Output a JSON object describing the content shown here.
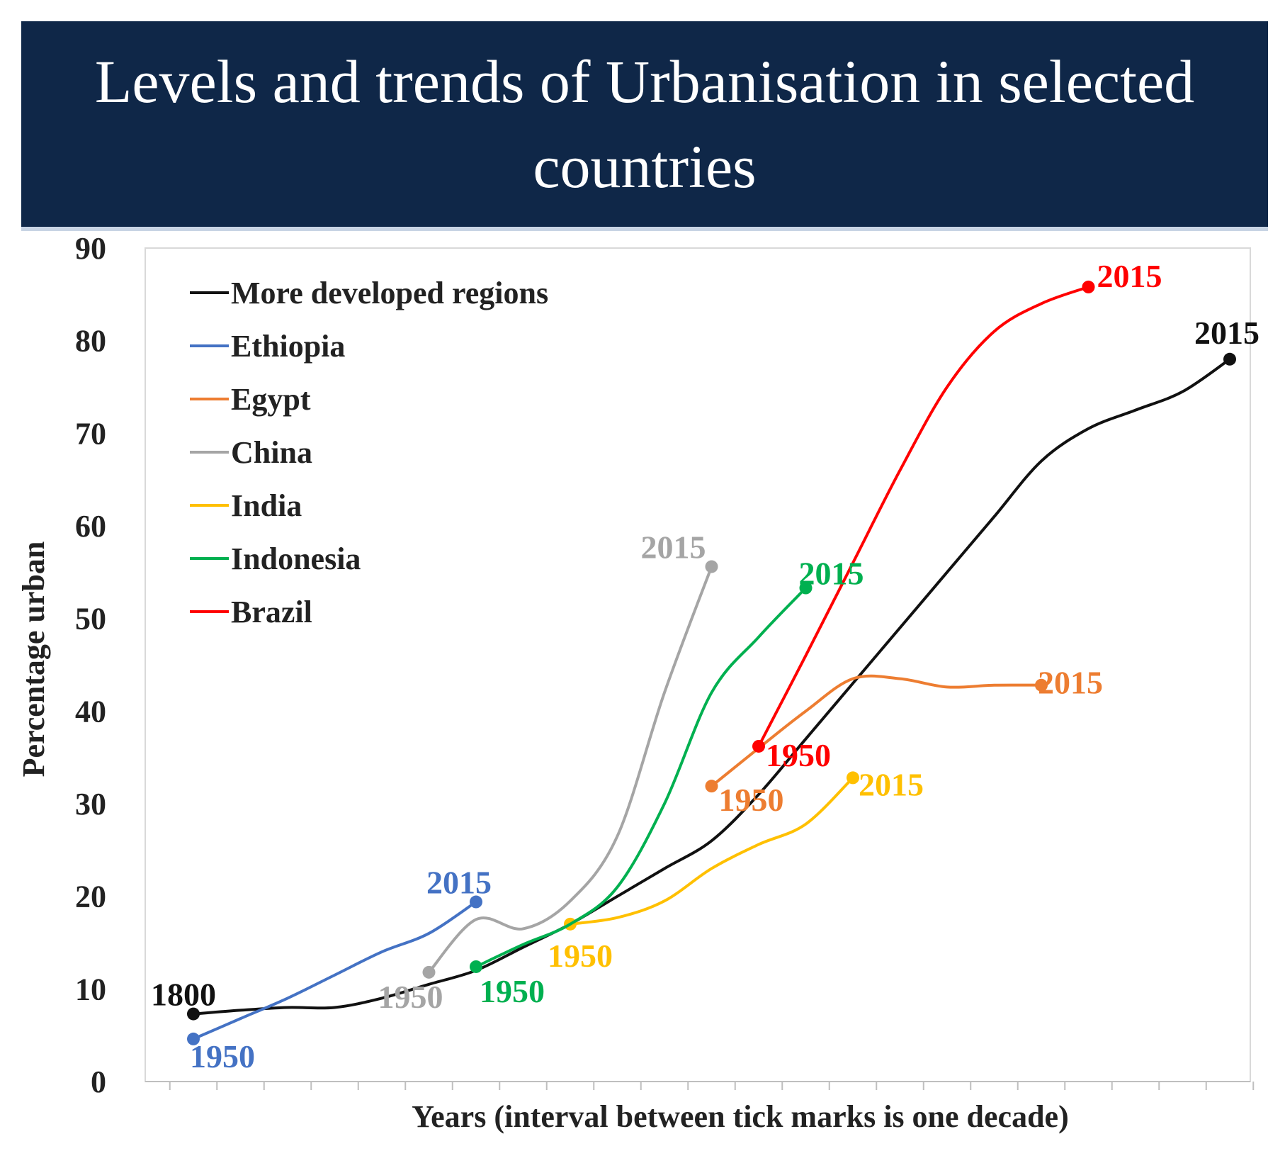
{
  "chart_data": {
    "type": "line",
    "title": "Levels and trends of Urbanisation in selected countries",
    "xlabel": "Years (interval between tick marks is one decade)",
    "ylabel": "Percentage  urban",
    "ylim": [
      0,
      90
    ],
    "yticks": [
      0,
      10,
      20,
      30,
      40,
      50,
      60,
      70,
      80,
      90
    ],
    "x_unit": "decade index (0 = 1800, one tick per decade)",
    "xlim": [
      -1,
      22
    ],
    "legend_position": "top-left",
    "series": [
      {
        "name": "More developed regions",
        "color": "#111111",
        "points": [
          [
            0,
            7.3
          ],
          [
            1,
            7.7
          ],
          [
            2,
            8.0
          ],
          [
            3,
            8.0
          ],
          [
            4,
            9.0
          ],
          [
            5,
            10.5
          ],
          [
            6,
            12.0
          ],
          [
            7,
            14.5
          ],
          [
            8,
            17.0
          ],
          [
            9,
            20.0
          ],
          [
            10,
            23.0
          ],
          [
            11,
            26.0
          ],
          [
            12,
            31.0
          ],
          [
            13,
            37.0
          ],
          [
            14,
            43.0
          ],
          [
            15,
            49.0
          ],
          [
            16,
            55.0
          ],
          [
            17,
            61.0
          ],
          [
            18,
            67.0
          ],
          [
            19,
            70.5
          ],
          [
            20,
            72.5
          ],
          [
            21,
            74.5
          ],
          [
            22,
            78.0
          ]
        ],
        "start_label": "1800",
        "end_label": "2015",
        "marker_at": [
          0,
          22
        ]
      },
      {
        "name": "Ethiopia",
        "color": "#4472c4",
        "points": [
          [
            0,
            4.6
          ],
          [
            1,
            6.8
          ],
          [
            2,
            9.0
          ],
          [
            3,
            11.5
          ],
          [
            4,
            14.0
          ],
          [
            5,
            16.0
          ],
          [
            6,
            19.4
          ]
        ],
        "start_label": "1950",
        "end_label": "2015",
        "marker_at": [
          0,
          6
        ]
      },
      {
        "name": "Egypt",
        "color": "#ed7d31",
        "points": [
          [
            11,
            31.9
          ],
          [
            12,
            36.0
          ],
          [
            13,
            40.0
          ],
          [
            14,
            43.5
          ],
          [
            15,
            43.5
          ],
          [
            16,
            42.6
          ],
          [
            17,
            42.8
          ],
          [
            18,
            42.8
          ]
        ],
        "start_label": "1950",
        "end_label": "2015",
        "marker_at": [
          11,
          18
        ]
      },
      {
        "name": "China",
        "color": "#a5a5a5",
        "points": [
          [
            5,
            11.8
          ],
          [
            6,
            17.5
          ],
          [
            7,
            16.5
          ],
          [
            8,
            19.5
          ],
          [
            9,
            26.5
          ],
          [
            10,
            42.0
          ],
          [
            11,
            55.6
          ]
        ],
        "start_label": "1950",
        "end_label": "2015",
        "marker_at": [
          5,
          11
        ]
      },
      {
        "name": "India",
        "color": "#ffc000",
        "points": [
          [
            8,
            17.0
          ],
          [
            9,
            17.7
          ],
          [
            10,
            19.5
          ],
          [
            11,
            23.0
          ],
          [
            12,
            25.6
          ],
          [
            13,
            27.8
          ],
          [
            14,
            32.8
          ]
        ],
        "start_label": "1950",
        "end_label": "2015",
        "marker_at": [
          8,
          14
        ]
      },
      {
        "name": "Indonesia",
        "color": "#00b050",
        "points": [
          [
            6,
            12.4
          ],
          [
            7,
            14.8
          ],
          [
            8,
            17.0
          ],
          [
            9,
            21.0
          ],
          [
            10,
            30.0
          ],
          [
            11,
            42.0
          ],
          [
            12,
            48.0
          ],
          [
            13,
            53.3
          ]
        ],
        "start_label": "1950",
        "end_label": "2015",
        "marker_at": [
          6,
          13
        ]
      },
      {
        "name": "Brazil",
        "color": "#ff0000",
        "points": [
          [
            12,
            36.2
          ],
          [
            13,
            46.0
          ],
          [
            14,
            56.0
          ],
          [
            15,
            66.0
          ],
          [
            16,
            75.0
          ],
          [
            17,
            81.0
          ],
          [
            18,
            84.0
          ],
          [
            19,
            85.8
          ]
        ],
        "start_label": "1950",
        "end_label": "2015",
        "marker_at": [
          12,
          19
        ]
      }
    ]
  }
}
